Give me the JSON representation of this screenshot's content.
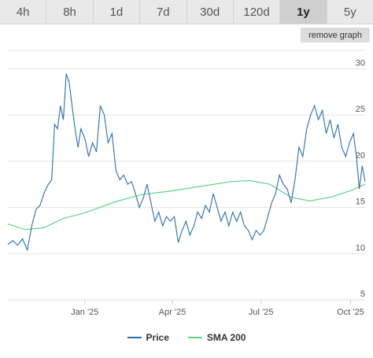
{
  "tabs": [
    {
      "label": "4h",
      "active": false
    },
    {
      "label": "8h",
      "active": false
    },
    {
      "label": "1d",
      "active": false
    },
    {
      "label": "7d",
      "active": false
    },
    {
      "label": "30d",
      "active": false
    },
    {
      "label": "120d",
      "active": false
    },
    {
      "label": "1y",
      "active": true
    },
    {
      "label": "5y",
      "active": false
    }
  ],
  "remove_graph_label": "remove graph",
  "colors": {
    "price": "#2b6fa8",
    "sma": "#5fd48a",
    "grid": "#e3e3e3",
    "axis": "#555555"
  },
  "chart_data": {
    "type": "line",
    "title": "",
    "xlabel": "",
    "ylabel": "",
    "grid": true,
    "legend_position": "bottom",
    "ylim": [
      5,
      32
    ],
    "yticks": [
      5,
      10,
      15,
      20,
      25,
      30
    ],
    "x_range": [
      "2024-10-14",
      "2025-10-16"
    ],
    "xticks": [
      {
        "label": "Jan '25",
        "date": "2025-01-01"
      },
      {
        "label": "Apr '25",
        "date": "2025-04-01"
      },
      {
        "label": "Jul '25",
        "date": "2025-07-01"
      },
      {
        "label": "Oct '25",
        "date": "2025-10-01"
      }
    ],
    "series": [
      {
        "name": "Price",
        "points": [
          [
            "2024-10-14",
            11.0
          ],
          [
            "2024-10-19",
            11.4
          ],
          [
            "2024-10-24",
            10.9
          ],
          [
            "2024-10-29",
            11.6
          ],
          [
            "2024-11-03",
            10.4
          ],
          [
            "2024-11-08",
            13.2
          ],
          [
            "2024-11-12",
            14.8
          ],
          [
            "2024-11-16",
            15.2
          ],
          [
            "2024-11-20",
            16.5
          ],
          [
            "2024-11-24",
            17.4
          ],
          [
            "2024-11-28",
            18.0
          ],
          [
            "2024-12-01",
            24.0
          ],
          [
            "2024-12-04",
            23.5
          ],
          [
            "2024-12-07",
            26.0
          ],
          [
            "2024-12-10",
            24.5
          ],
          [
            "2024-12-13",
            29.5
          ],
          [
            "2024-12-16",
            28.5
          ],
          [
            "2024-12-19",
            26.0
          ],
          [
            "2024-12-22",
            23.5
          ],
          [
            "2024-12-25",
            21.5
          ],
          [
            "2024-12-28",
            23.5
          ],
          [
            "2025-01-01",
            22.5
          ],
          [
            "2025-01-05",
            20.5
          ],
          [
            "2025-01-09",
            22.0
          ],
          [
            "2025-01-13",
            21.0
          ],
          [
            "2025-01-17",
            26.0
          ],
          [
            "2025-01-21",
            25.0
          ],
          [
            "2025-01-25",
            22.0
          ],
          [
            "2025-01-29",
            23.0
          ],
          [
            "2025-02-02",
            19.0
          ],
          [
            "2025-02-06",
            18.0
          ],
          [
            "2025-02-10",
            18.5
          ],
          [
            "2025-02-14",
            17.5
          ],
          [
            "2025-02-18",
            17.8
          ],
          [
            "2025-02-22",
            16.5
          ],
          [
            "2025-02-26",
            15.0
          ],
          [
            "2025-03-02",
            16.0
          ],
          [
            "2025-03-06",
            17.5
          ],
          [
            "2025-03-10",
            15.5
          ],
          [
            "2025-03-14",
            13.5
          ],
          [
            "2025-03-18",
            14.5
          ],
          [
            "2025-03-22",
            13.0
          ],
          [
            "2025-03-26",
            14.0
          ],
          [
            "2025-03-30",
            13.5
          ],
          [
            "2025-04-03",
            14.0
          ],
          [
            "2025-04-07",
            11.2
          ],
          [
            "2025-04-11",
            12.5
          ],
          [
            "2025-04-15",
            13.5
          ],
          [
            "2025-04-19",
            12.0
          ],
          [
            "2025-04-23",
            13.0
          ],
          [
            "2025-04-27",
            14.5
          ],
          [
            "2025-05-01",
            13.8
          ],
          [
            "2025-05-05",
            15.2
          ],
          [
            "2025-05-09",
            14.5
          ],
          [
            "2025-05-13",
            16.5
          ],
          [
            "2025-05-17",
            15.0
          ],
          [
            "2025-05-21",
            13.5
          ],
          [
            "2025-05-25",
            14.5
          ],
          [
            "2025-05-29",
            13.0
          ],
          [
            "2025-06-02",
            14.5
          ],
          [
            "2025-06-06",
            13.5
          ],
          [
            "2025-06-10",
            14.5
          ],
          [
            "2025-06-14",
            13.0
          ],
          [
            "2025-06-18",
            12.5
          ],
          [
            "2025-06-22",
            11.5
          ],
          [
            "2025-06-26",
            12.5
          ],
          [
            "2025-06-30",
            12.0
          ],
          [
            "2025-07-04",
            12.5
          ],
          [
            "2025-07-08",
            14.0
          ],
          [
            "2025-07-12",
            15.5
          ],
          [
            "2025-07-16",
            16.5
          ],
          [
            "2025-07-20",
            18.5
          ],
          [
            "2025-07-24",
            17.5
          ],
          [
            "2025-07-28",
            17.0
          ],
          [
            "2025-08-01",
            15.5
          ],
          [
            "2025-08-05",
            18.0
          ],
          [
            "2025-08-09",
            21.5
          ],
          [
            "2025-08-13",
            20.5
          ],
          [
            "2025-08-17",
            23.5
          ],
          [
            "2025-08-21",
            25.0
          ],
          [
            "2025-08-25",
            26.0
          ],
          [
            "2025-08-29",
            24.5
          ],
          [
            "2025-09-02",
            25.5
          ],
          [
            "2025-09-06",
            23.0
          ],
          [
            "2025-09-10",
            24.5
          ],
          [
            "2025-09-14",
            22.5
          ],
          [
            "2025-09-18",
            24.0
          ],
          [
            "2025-09-22",
            21.5
          ],
          [
            "2025-09-26",
            20.5
          ],
          [
            "2025-09-30",
            22.0
          ],
          [
            "2025-10-04",
            23.0
          ],
          [
            "2025-10-07",
            20.5
          ],
          [
            "2025-10-10",
            17.0
          ],
          [
            "2025-10-13",
            19.5
          ],
          [
            "2025-10-16",
            17.8
          ]
        ]
      },
      {
        "name": "SMA 200",
        "points": [
          [
            "2024-10-14",
            13.2
          ],
          [
            "2024-11-01",
            12.6
          ],
          [
            "2024-11-20",
            12.8
          ],
          [
            "2024-12-10",
            13.8
          ],
          [
            "2025-01-01",
            14.4
          ],
          [
            "2025-02-01",
            15.6
          ],
          [
            "2025-03-01",
            16.4
          ],
          [
            "2025-04-01",
            16.8
          ],
          [
            "2025-05-01",
            17.3
          ],
          [
            "2025-06-01",
            17.8
          ],
          [
            "2025-06-20",
            17.9
          ],
          [
            "2025-07-10",
            17.5
          ],
          [
            "2025-08-01",
            16.1
          ],
          [
            "2025-08-20",
            15.7
          ],
          [
            "2025-09-10",
            16.1
          ],
          [
            "2025-10-01",
            16.8
          ],
          [
            "2025-10-16",
            17.5
          ]
        ]
      }
    ]
  }
}
